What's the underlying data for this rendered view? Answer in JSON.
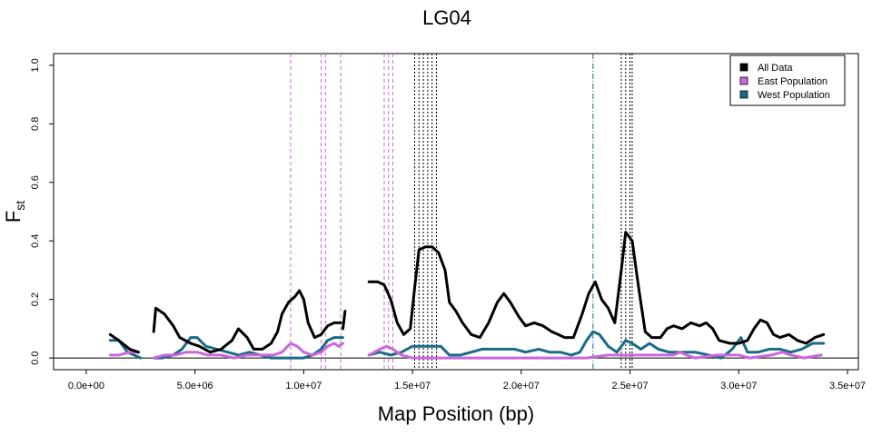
{
  "chart_data": {
    "type": "line",
    "title": "LG04",
    "xlabel": "Map Position (bp)",
    "ylabel_main": "F",
    "ylabel_sub": "st",
    "xlim": [
      -1500000,
      35500000
    ],
    "ylim": [
      -0.04,
      1.04
    ],
    "x_ticks": [
      0,
      5000000,
      10000000,
      15000000,
      20000000,
      25000000,
      30000000,
      35000000
    ],
    "x_tick_labels": [
      "0.0e+00",
      "5.0e+06",
      "1.0e+07",
      "1.5e+07",
      "2.0e+07",
      "2.5e+07",
      "3.0e+07",
      "3.5e+07"
    ],
    "y_ticks": [
      0.0,
      0.2,
      0.4,
      0.6,
      0.8,
      1.0
    ],
    "y_tick_labels": [
      "0.0",
      "0.2",
      "0.4",
      "0.6",
      "0.8",
      "1.0"
    ],
    "reference_line_y": 0,
    "legend": {
      "position": "top-right",
      "entries": [
        {
          "label": "All Data",
          "color": "#000000"
        },
        {
          "label": "East Population",
          "color": "#cc66dd"
        },
        {
          "label": "West Population",
          "color": "#1a6b87"
        }
      ]
    },
    "vertical_lines": {
      "east": [
        9400000,
        10800000,
        11000000,
        11700000,
        13700000,
        13900000,
        14100000
      ],
      "all": [
        15100000,
        15300000,
        15500000,
        15700000,
        15900000,
        16100000,
        24600000,
        24800000,
        25000000,
        25100000
      ],
      "west": [
        23300000
      ]
    },
    "series": [
      {
        "name": "All Data",
        "color": "#000000",
        "segments": [
          [
            [
              1100000,
              0.08
            ],
            [
              1500000,
              0.06
            ],
            [
              2000000,
              0.03
            ],
            [
              2400000,
              0.02
            ]
          ],
          [
            [
              3100000,
              0.09
            ],
            [
              3200000,
              0.17
            ],
            [
              3600000,
              0.15
            ],
            [
              4000000,
              0.11
            ],
            [
              4300000,
              0.07
            ],
            [
              4800000,
              0.05
            ],
            [
              5200000,
              0.04
            ],
            [
              5700000,
              0.02
            ],
            [
              6200000,
              0.03
            ],
            [
              6700000,
              0.06
            ],
            [
              7000000,
              0.1
            ],
            [
              7400000,
              0.07
            ],
            [
              7700000,
              0.03
            ],
            [
              8100000,
              0.03
            ],
            [
              8500000,
              0.05
            ],
            [
              8800000,
              0.09
            ],
            [
              9000000,
              0.15
            ],
            [
              9300000,
              0.19
            ],
            [
              9600000,
              0.21
            ],
            [
              9800000,
              0.23
            ],
            [
              10000000,
              0.2
            ],
            [
              10200000,
              0.12
            ],
            [
              10500000,
              0.07
            ],
            [
              10800000,
              0.08
            ],
            [
              11100000,
              0.11
            ],
            [
              11400000,
              0.12
            ],
            [
              11700000,
              0.12
            ]
          ],
          [
            [
              11800000,
              0.1
            ],
            [
              11900000,
              0.16
            ]
          ],
          [
            [
              13000000,
              0.26
            ],
            [
              13400000,
              0.26
            ],
            [
              13700000,
              0.25
            ],
            [
              14000000,
              0.2
            ],
            [
              14300000,
              0.12
            ],
            [
              14600000,
              0.08
            ],
            [
              14900000,
              0.1
            ],
            [
              15100000,
              0.24
            ],
            [
              15300000,
              0.37
            ],
            [
              15600000,
              0.38
            ],
            [
              15900000,
              0.38
            ],
            [
              16200000,
              0.36
            ],
            [
              16500000,
              0.3
            ],
            [
              16700000,
              0.19
            ],
            [
              17000000,
              0.16
            ],
            [
              17300000,
              0.12
            ],
            [
              17700000,
              0.08
            ],
            [
              18100000,
              0.07
            ],
            [
              18500000,
              0.12
            ],
            [
              18900000,
              0.19
            ],
            [
              19200000,
              0.22
            ],
            [
              19500000,
              0.19
            ],
            [
              19900000,
              0.14
            ],
            [
              20200000,
              0.11
            ],
            [
              20600000,
              0.12
            ],
            [
              21000000,
              0.11
            ],
            [
              21400000,
              0.09
            ],
            [
              21700000,
              0.08
            ],
            [
              22000000,
              0.07
            ],
            [
              22400000,
              0.07
            ],
            [
              22800000,
              0.15
            ],
            [
              23100000,
              0.22
            ],
            [
              23400000,
              0.26
            ],
            [
              23700000,
              0.2
            ],
            [
              24000000,
              0.17
            ],
            [
              24300000,
              0.12
            ],
            [
              24600000,
              0.3
            ],
            [
              24800000,
              0.43
            ],
            [
              25100000,
              0.4
            ],
            [
              25400000,
              0.24
            ],
            [
              25700000,
              0.09
            ],
            [
              26000000,
              0.07
            ],
            [
              26400000,
              0.07
            ],
            [
              26700000,
              0.1
            ],
            [
              27000000,
              0.11
            ],
            [
              27400000,
              0.1
            ],
            [
              27800000,
              0.12
            ],
            [
              28200000,
              0.11
            ],
            [
              28500000,
              0.12
            ],
            [
              28800000,
              0.1
            ],
            [
              29100000,
              0.06
            ],
            [
              29600000,
              0.05
            ],
            [
              30000000,
              0.05
            ],
            [
              30400000,
              0.06
            ],
            [
              30700000,
              0.1
            ],
            [
              31000000,
              0.13
            ],
            [
              31300000,
              0.12
            ],
            [
              31600000,
              0.08
            ],
            [
              31900000,
              0.07
            ],
            [
              32300000,
              0.08
            ],
            [
              32700000,
              0.06
            ],
            [
              33100000,
              0.05
            ],
            [
              33500000,
              0.07
            ],
            [
              33900000,
              0.08
            ]
          ]
        ]
      },
      {
        "name": "East Population",
        "color": "#cc66dd",
        "segments": [
          [
            [
              1100000,
              0.01
            ],
            [
              1500000,
              0.01
            ],
            [
              2000000,
              0.02
            ],
            [
              2400000,
              0.02
            ]
          ],
          [
            [
              3100000,
              0.0
            ],
            [
              3600000,
              0.01
            ],
            [
              4100000,
              0.01
            ],
            [
              4600000,
              0.02
            ],
            [
              5100000,
              0.02
            ],
            [
              5600000,
              0.01
            ],
            [
              6200000,
              0.01
            ],
            [
              6800000,
              0.0
            ],
            [
              7400000,
              0.01
            ],
            [
              8000000,
              0.01
            ],
            [
              8600000,
              0.01
            ],
            [
              9000000,
              0.02
            ],
            [
              9400000,
              0.05
            ],
            [
              9700000,
              0.04
            ],
            [
              10000000,
              0.02
            ],
            [
              10400000,
              0.01
            ],
            [
              10800000,
              0.02
            ],
            [
              11100000,
              0.04
            ],
            [
              11400000,
              0.05
            ],
            [
              11600000,
              0.04
            ],
            [
              11800000,
              0.05
            ]
          ],
          [
            [
              13000000,
              0.01
            ],
            [
              13500000,
              0.03
            ],
            [
              13800000,
              0.04
            ],
            [
              14100000,
              0.03
            ],
            [
              14500000,
              0.01
            ],
            [
              15000000,
              0.0
            ],
            [
              16000000,
              0.0
            ],
            [
              17000000,
              0.0
            ],
            [
              18000000,
              0.0
            ],
            [
              19000000,
              0.0
            ],
            [
              20000000,
              0.0
            ],
            [
              21000000,
              0.0
            ],
            [
              22000000,
              0.0
            ],
            [
              23000000,
              0.0
            ],
            [
              24000000,
              0.01
            ],
            [
              25000000,
              0.01
            ],
            [
              26000000,
              0.01
            ],
            [
              27000000,
              0.01
            ],
            [
              27300000,
              0.02
            ],
            [
              27600000,
              0.01
            ],
            [
              28000000,
              0.0
            ],
            [
              29000000,
              0.01
            ],
            [
              30000000,
              0.01
            ],
            [
              30500000,
              0.0
            ],
            [
              31500000,
              0.01
            ],
            [
              32000000,
              0.02
            ],
            [
              32400000,
              0.01
            ],
            [
              33000000,
              0.0
            ],
            [
              33800000,
              0.01
            ]
          ]
        ]
      },
      {
        "name": "West Population",
        "color": "#1a6b87",
        "segments": [
          [
            [
              1100000,
              0.06
            ],
            [
              1500000,
              0.06
            ],
            [
              1900000,
              0.02
            ],
            [
              2200000,
              0.01
            ],
            [
              2500000,
              0.0
            ]
          ],
          [
            [
              3100000,
              0.0
            ],
            [
              3500000,
              0.0
            ],
            [
              4000000,
              0.01
            ],
            [
              4400000,
              0.03
            ],
            [
              4800000,
              0.07
            ],
            [
              5100000,
              0.07
            ],
            [
              5500000,
              0.04
            ],
            [
              6000000,
              0.03
            ],
            [
              6500000,
              0.02
            ],
            [
              7000000,
              0.01
            ],
            [
              7500000,
              0.02
            ],
            [
              8000000,
              0.01
            ],
            [
              8500000,
              0.0
            ],
            [
              9000000,
              0.0
            ],
            [
              9500000,
              0.0
            ],
            [
              10000000,
              0.0
            ],
            [
              10400000,
              0.01
            ],
            [
              10800000,
              0.03
            ],
            [
              11100000,
              0.06
            ],
            [
              11400000,
              0.07
            ],
            [
              11800000,
              0.07
            ]
          ],
          [
            [
              13000000,
              0.01
            ],
            [
              13500000,
              0.02
            ],
            [
              14000000,
              0.01
            ],
            [
              14500000,
              0.02
            ],
            [
              15000000,
              0.04
            ],
            [
              15500000,
              0.04
            ],
            [
              16000000,
              0.04
            ],
            [
              16300000,
              0.04
            ],
            [
              16700000,
              0.01
            ],
            [
              17200000,
              0.01
            ],
            [
              17700000,
              0.02
            ],
            [
              18200000,
              0.03
            ],
            [
              18700000,
              0.03
            ],
            [
              19200000,
              0.03
            ],
            [
              19700000,
              0.03
            ],
            [
              20200000,
              0.02
            ],
            [
              20800000,
              0.03
            ],
            [
              21300000,
              0.02
            ],
            [
              21800000,
              0.02
            ],
            [
              22300000,
              0.01
            ],
            [
              22700000,
              0.02
            ],
            [
              23000000,
              0.06
            ],
            [
              23300000,
              0.09
            ],
            [
              23600000,
              0.08
            ],
            [
              24000000,
              0.04
            ],
            [
              24400000,
              0.02
            ],
            [
              24800000,
              0.06
            ],
            [
              25100000,
              0.05
            ],
            [
              25500000,
              0.03
            ],
            [
              25900000,
              0.05
            ],
            [
              26300000,
              0.03
            ],
            [
              26800000,
              0.02
            ],
            [
              27400000,
              0.02
            ],
            [
              28000000,
              0.02
            ],
            [
              28600000,
              0.01
            ],
            [
              29200000,
              0.0
            ],
            [
              29700000,
              0.03
            ],
            [
              30100000,
              0.07
            ],
            [
              30400000,
              0.02
            ],
            [
              30900000,
              0.02
            ],
            [
              31400000,
              0.03
            ],
            [
              31900000,
              0.03
            ],
            [
              32400000,
              0.02
            ],
            [
              32900000,
              0.03
            ],
            [
              33400000,
              0.05
            ],
            [
              33900000,
              0.05
            ]
          ]
        ]
      }
    ]
  }
}
